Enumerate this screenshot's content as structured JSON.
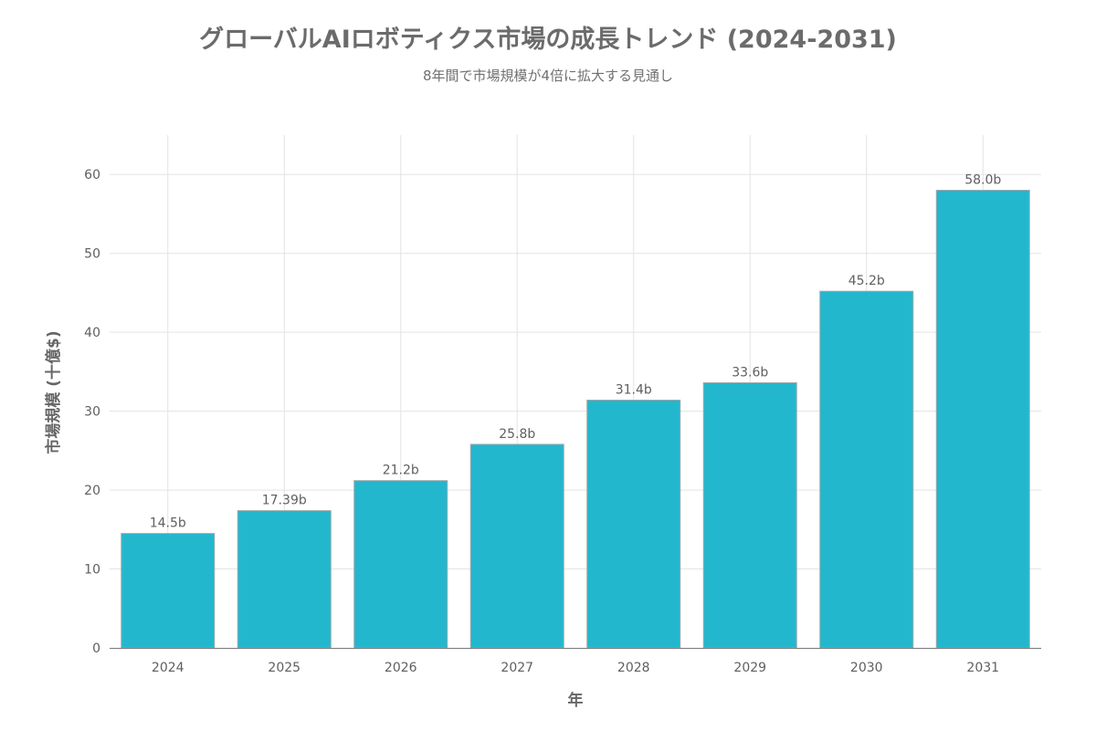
{
  "chart_data": {
    "type": "bar",
    "title": "グローバルAIロボティクス市場の成長トレンド (2024-2031)",
    "subtitle": "8年間で市場規模が4倍に拡大する見通し",
    "xlabel": "年",
    "ylabel": "市場規模 (十億$)",
    "categories": [
      "2024",
      "2025",
      "2026",
      "2027",
      "2028",
      "2029",
      "2030",
      "2031"
    ],
    "values": [
      14.5,
      17.39,
      21.2,
      25.8,
      31.4,
      33.6,
      45.2,
      58.0
    ],
    "data_labels": [
      "14.5b",
      "17.39b",
      "21.2b",
      "25.8b",
      "31.4b",
      "33.6b",
      "45.2b",
      "58.0b"
    ],
    "ylim": [
      0,
      65
    ],
    "yticks": [
      0,
      10,
      20,
      30,
      40,
      50,
      60
    ],
    "grid": true,
    "bar_color": "#22b7cd",
    "bar_edge_color": "#9fa8ab"
  }
}
